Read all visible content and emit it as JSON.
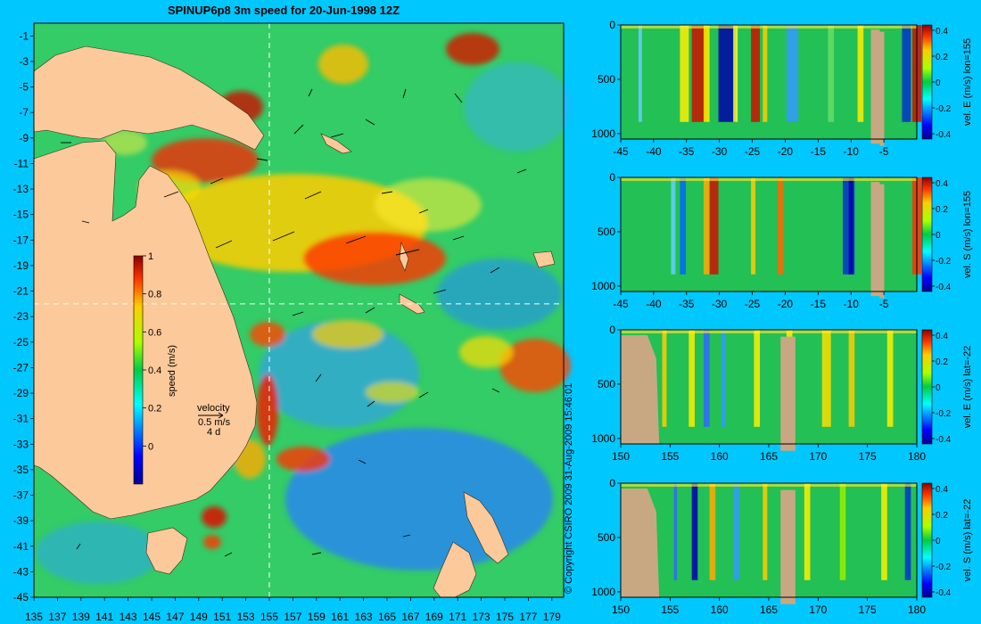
{
  "background_color": "#00c8ff",
  "land_color": "#fcc99a",
  "section_land_color": "#c8a882",
  "copyright": "© Copyright CSIRO 2009   31-Aug-2009 15:46:01",
  "chart_data": [
    {
      "type": "heatmap",
      "title": "SPINUP6p8 3m speed for 20-Jun-1998 12Z",
      "xticks": [
        "135",
        "137",
        "139",
        "141",
        "143",
        "145",
        "147",
        "149",
        "151",
        "153",
        "155",
        "157",
        "159",
        "161",
        "163",
        "165",
        "167",
        "169",
        "171",
        "173",
        "175",
        "177",
        "179"
      ],
      "yticks": [
        "-1",
        "-3",
        "-5",
        "-7",
        "-9",
        "-11",
        "-13",
        "-15",
        "-17",
        "-19",
        "-21",
        "-23",
        "-25",
        "-27",
        "-29",
        "-31",
        "-33",
        "-35",
        "-37",
        "-39",
        "-41",
        "-43",
        "-45"
      ],
      "xlim": [
        135,
        180
      ],
      "ylim": [
        -45,
        0
      ],
      "guide_lines": {
        "lon": 155,
        "lat": -22
      },
      "colorbar": {
        "label": "speed (m/s)",
        "ticks": [
          "0",
          "0.2",
          "0.4",
          "0.6",
          "0.8",
          "1"
        ],
        "range": [
          -0.2,
          1
        ]
      },
      "vector_key": {
        "label": "velocity",
        "speed": "0.5 m/s",
        "duration": "4 d"
      }
    },
    {
      "type": "heatmap",
      "xticks": [
        "-45",
        "-40",
        "-35",
        "-30",
        "-25",
        "-20",
        "-15",
        "-10",
        "-5"
      ],
      "yticks": [
        "0",
        "500",
        "1000"
      ],
      "xlim": [
        -45,
        0
      ],
      "ylim": [
        1050,
        0
      ],
      "colorbar": {
        "label": "vel. E (m/s) lon=155",
        "ticks": [
          "0.4",
          "0.2",
          "0",
          "-0.2",
          "-0.4"
        ]
      }
    },
    {
      "type": "heatmap",
      "xticks": [
        "-45",
        "-40",
        "-35",
        "-30",
        "-25",
        "-20",
        "-15",
        "-10",
        "-5"
      ],
      "yticks": [
        "0",
        "500",
        "1000"
      ],
      "xlim": [
        -45,
        0
      ],
      "ylim": [
        1050,
        0
      ],
      "colorbar": {
        "label": "vel. S (m/s) lon=155",
        "ticks": [
          "0.4",
          "0.2",
          "0",
          "-0.2",
          "-0.4"
        ]
      }
    },
    {
      "type": "heatmap",
      "xticks": [
        "150",
        "155",
        "160",
        "165",
        "170",
        "175",
        "180"
      ],
      "yticks": [
        "0",
        "500",
        "1000"
      ],
      "xlim": [
        150,
        180
      ],
      "ylim": [
        1050,
        0
      ],
      "colorbar": {
        "label": "vel. E (m/s) lat=-22",
        "ticks": [
          "0.4",
          "0.2",
          "0",
          "-0.2",
          "-0.4"
        ]
      }
    },
    {
      "type": "heatmap",
      "xticks": [
        "150",
        "155",
        "160",
        "165",
        "170",
        "175",
        "180"
      ],
      "yticks": [
        "0",
        "500",
        "1000"
      ],
      "xlim": [
        150,
        180
      ],
      "ylim": [
        1050,
        0
      ],
      "colorbar": {
        "label": "vel. S (m/s) lat=-22",
        "ticks": [
          "0.4",
          "0.2",
          "0",
          "-0.2",
          "-0.4"
        ]
      }
    }
  ]
}
